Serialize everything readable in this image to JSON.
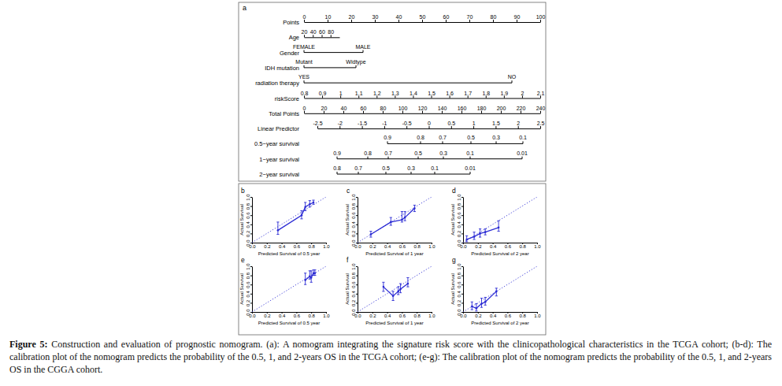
{
  "chart_data": [
    {
      "type": "nomogram",
      "panel": "a",
      "points_lim": [
        0,
        100
      ],
      "total_points_lim": [
        0,
        240
      ],
      "rows": [
        {
          "label": "Points",
          "scale": "points",
          "lim": [
            0,
            100
          ],
          "at": [
            0,
            100
          ],
          "ticks": [
            0,
            10,
            20,
            30,
            40,
            50,
            60,
            70,
            80,
            90,
            100
          ]
        },
        {
          "label": "Age",
          "scale": "points",
          "lim": [
            20,
            100
          ],
          "at": [
            0,
            15
          ],
          "ticks": [
            20,
            40,
            60,
            80
          ]
        },
        {
          "label": "Gender",
          "scale": "points",
          "levels": [
            {
              "label": "FEMALE",
              "points": 0
            },
            {
              "label": "MALE",
              "points": 25
            }
          ]
        },
        {
          "label": "IDH mutation",
          "scale": "points",
          "levels": [
            {
              "label": "Mutant",
              "points": 0
            },
            {
              "label": "Widtype",
              "points": 22
            }
          ]
        },
        {
          "label": "radiation therapy",
          "scale": "points",
          "levels": [
            {
              "label": "YES",
              "points": 0
            },
            {
              "label": "NO",
              "points": 88
            }
          ]
        },
        {
          "label": "riskScore",
          "scale": "points",
          "lim": [
            0.8,
            2.1
          ],
          "at": [
            0,
            100
          ],
          "ticks": [
            0.8,
            0.9,
            1,
            1.1,
            1.2,
            1.3,
            1.4,
            1.5,
            1.6,
            1.7,
            1.8,
            1.9,
            2,
            2.1
          ]
        },
        {
          "label": "Total Points",
          "scale": "total",
          "lim": [
            0,
            240
          ],
          "at": [
            0,
            240
          ],
          "ticks": [
            0,
            20,
            40,
            60,
            80,
            100,
            120,
            140,
            160,
            180,
            200,
            220,
            240
          ]
        },
        {
          "label": "Linear Predictor",
          "scale": "total",
          "lim": [
            -2.5,
            2.5
          ],
          "at": [
            13.6,
            240
          ],
          "ticks": [
            -2.5,
            -2,
            -1.5,
            -1,
            -0.5,
            0,
            0.5,
            1,
            1.5,
            2,
            2.5
          ]
        },
        {
          "label": "0.5−year survival",
          "scale": "total",
          "ticks": [
            {
              "value": 0.9,
              "points": 84.8
            },
            {
              "value": 0.8,
              "points": 118.4
            },
            {
              "value": 0.7,
              "points": 140.8
            },
            {
              "value": 0.5,
              "points": 169.6
            },
            {
              "value": 0.3,
              "points": 195.2
            },
            {
              "value": 0.1,
              "points": 222.4
            }
          ]
        },
        {
          "label": "1−year survival",
          "scale": "total",
          "ticks": [
            {
              "value": 0.9,
              "points": 33.6
            },
            {
              "value": 0.8,
              "points": 64.8
            },
            {
              "value": 0.7,
              "points": 85.6
            },
            {
              "value": 0.5,
              "points": 116
            },
            {
              "value": 0.3,
              "points": 141.6
            },
            {
              "value": 0.1,
              "points": 168.8
            },
            {
              "value": 0.01,
              "points": 221.6
            }
          ]
        },
        {
          "label": "2−year survival",
          "scale": "total",
          "ticks": [
            {
              "value": 0.8,
              "points": 33.6
            },
            {
              "value": 0.7,
              "points": 55.2
            },
            {
              "value": 0.5,
              "points": 83.2
            },
            {
              "value": 0.3,
              "points": 108.8
            },
            {
              "value": 0.1,
              "points": 132.8
            },
            {
              "value": 0.01,
              "points": 168.8
            }
          ]
        }
      ]
    },
    {
      "type": "calibration",
      "panel": "b",
      "x_label": "Predicted Survival of 0.5 year",
      "y_label": "Actual Survival",
      "xlim": [
        0,
        1
      ],
      "ylim": [
        0,
        1
      ],
      "xticks": [
        {
          "value": 0,
          "label": "0.0"
        },
        0.2,
        0.4,
        0.6,
        0.8,
        {
          "value": 1,
          "label": "1.0"
        }
      ],
      "yticks": [
        {
          "value": 0,
          "label": "0.0"
        },
        0.2,
        0.4,
        0.6,
        0.8,
        {
          "value": 1,
          "label": "1.0"
        }
      ],
      "series": [
        {
          "color": "#2b2bd4",
          "line_style": "solid",
          "marker": "circle",
          "x": [
            0.35,
            0.67,
            0.72,
            0.78,
            0.83
          ],
          "values": [
            0.27,
            0.6,
            0.78,
            0.84,
            0.88
          ],
          "error_lower": [
            0.18,
            0.52,
            0.7,
            0.78,
            0.84
          ],
          "error_upper": [
            0.45,
            0.7,
            0.88,
            0.92,
            0.93
          ]
        }
      ]
    },
    {
      "type": "calibration",
      "panel": "c",
      "x_label": "Predicted Survival of 1 year",
      "y_label": "Actual Survival",
      "xlim": [
        0,
        1
      ],
      "ylim": [
        0,
        1
      ],
      "xticks": [
        {
          "value": 0,
          "label": "0.0"
        },
        0.2,
        0.4,
        0.6,
        0.8,
        {
          "value": 1,
          "label": "1.0"
        }
      ],
      "yticks": [
        {
          "value": 0,
          "label": "0.0"
        },
        0.2,
        0.4,
        0.6,
        0.8,
        {
          "value": 1,
          "label": "1.0"
        }
      ],
      "series": [
        {
          "color": "#2b2bd4",
          "line_style": "solid",
          "marker": "circle",
          "x": [
            0.18,
            0.45,
            0.6,
            0.64,
            0.77
          ],
          "values": [
            0.18,
            0.45,
            0.5,
            0.55,
            0.75
          ],
          "error_lower": [
            0.12,
            0.38,
            0.45,
            0.48,
            0.68
          ],
          "error_upper": [
            0.25,
            0.55,
            0.68,
            0.68,
            0.82
          ]
        }
      ]
    },
    {
      "type": "calibration",
      "panel": "d",
      "x_label": "Predicted Survival of 2 year",
      "y_label": "Actual Survival",
      "xlim": [
        0,
        1
      ],
      "ylim": [
        0,
        1
      ],
      "xticks": [
        {
          "value": 0,
          "label": "0.0"
        },
        0.2,
        0.4,
        0.6,
        0.8,
        {
          "value": 1,
          "label": "1.0"
        }
      ],
      "yticks": [
        {
          "value": 0,
          "label": "0.0"
        },
        0.2,
        0.4,
        0.6,
        0.8,
        {
          "value": 1,
          "label": "1.0"
        }
      ],
      "series": [
        {
          "color": "#2b2bd4",
          "line_style": "solid",
          "marker": "circle",
          "x": [
            0.05,
            0.15,
            0.23,
            0.3,
            0.48
          ],
          "values": [
            0.07,
            0.13,
            0.2,
            0.23,
            0.33
          ],
          "error_lower": [
            0.02,
            0.07,
            0.12,
            0.17,
            0.25
          ],
          "error_upper": [
            0.15,
            0.23,
            0.3,
            0.3,
            0.48
          ]
        }
      ]
    },
    {
      "type": "calibration",
      "panel": "e",
      "x_label": "Predicted Survival of 0.5 year",
      "y_label": "Actual Survival",
      "xlim": [
        0,
        1
      ],
      "ylim": [
        0,
        1
      ],
      "xticks": [
        {
          "value": 0,
          "label": "0.0"
        },
        0.2,
        0.4,
        0.6,
        0.8,
        {
          "value": 1,
          "label": "1.0"
        }
      ],
      "yticks": [
        {
          "value": 0,
          "label": "0.0"
        },
        0.2,
        0.4,
        0.6,
        0.8,
        {
          "value": 1,
          "label": "1.0"
        }
      ],
      "series": [
        {
          "color": "#2b2bd4",
          "line_style": "solid",
          "marker": "circle",
          "x": [
            0.72,
            0.78,
            0.8,
            0.83,
            0.85
          ],
          "values": [
            0.7,
            0.78,
            0.75,
            0.85,
            0.85
          ],
          "error_lower": [
            0.6,
            0.72,
            0.65,
            0.8,
            0.8
          ],
          "error_upper": [
            0.85,
            0.9,
            0.9,
            0.92,
            0.92
          ]
        }
      ]
    },
    {
      "type": "calibration",
      "panel": "f",
      "x_label": "Predicted Survival of 1 year",
      "y_label": "Actual Survival",
      "xlim": [
        0,
        1
      ],
      "ylim": [
        0,
        1
      ],
      "xticks": [
        {
          "value": 0,
          "label": "0.0"
        },
        0.2,
        0.4,
        0.6,
        0.8,
        {
          "value": 1,
          "label": "1.0"
        }
      ],
      "yticks": [
        {
          "value": 0,
          "label": "0.0"
        },
        0.2,
        0.4,
        0.6,
        0.8,
        {
          "value": 1,
          "label": "1.0"
        }
      ],
      "series": [
        {
          "color": "#2b2bd4",
          "line_style": "solid",
          "marker": "circle",
          "x": [
            0.35,
            0.48,
            0.55,
            0.58,
            0.68
          ],
          "values": [
            0.55,
            0.35,
            0.45,
            0.5,
            0.62
          ],
          "error_lower": [
            0.45,
            0.25,
            0.38,
            0.42,
            0.55
          ],
          "error_upper": [
            0.65,
            0.45,
            0.55,
            0.62,
            0.75
          ]
        }
      ]
    },
    {
      "type": "calibration",
      "panel": "g",
      "x_label": "Predicted Survival of 2 year",
      "y_label": "Actual Survival",
      "xlim": [
        0,
        1
      ],
      "ylim": [
        0,
        1
      ],
      "xticks": [
        {
          "value": 0,
          "label": "0.0"
        },
        0.2,
        0.4,
        0.6,
        0.8,
        {
          "value": 1,
          "label": "1.0"
        }
      ],
      "yticks": [
        {
          "value": 0,
          "label": "0.0"
        },
        0.2,
        0.4,
        0.6,
        0.8,
        {
          "value": 1,
          "label": "1.0"
        }
      ],
      "series": [
        {
          "color": "#2b2bd4",
          "line_style": "solid",
          "marker": "circle",
          "x": [
            0.12,
            0.18,
            0.25,
            0.3,
            0.45
          ],
          "values": [
            0.12,
            0.08,
            0.18,
            0.22,
            0.45
          ],
          "error_lower": [
            0.05,
            0.02,
            0.1,
            0.15,
            0.35
          ],
          "error_upper": [
            0.22,
            0.18,
            0.3,
            0.32,
            0.52
          ]
        }
      ]
    }
  ],
  "caption": {
    "label": "Figure 5:",
    "text": "Construction and evaluation of prognostic nomogram. (a): A nomogram integrating the signature risk score with the clinicopathological characteristics in the TCGA cohort; (b-d): The calibration plot of the nomogram predicts the probability of the 0.5, 1, and 2-years OS in the TCGA cohort; (e-g): The calibration plot of the nomogram predicts the probability of the 0.5, 1, and 2-years OS in the CGGA cohort."
  }
}
